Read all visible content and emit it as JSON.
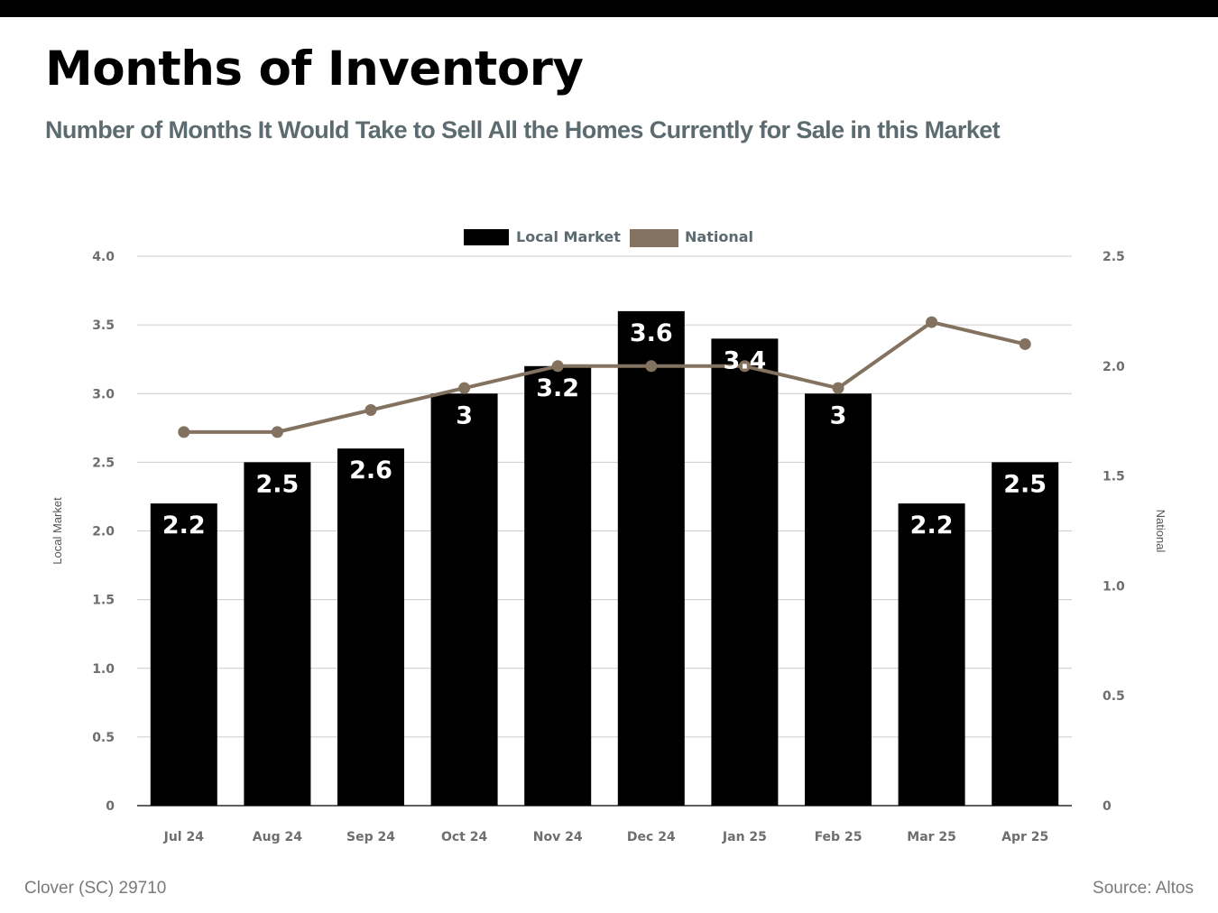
{
  "header": {
    "title": "Months of Inventory",
    "subtitle": "Number of Months It Would Take to Sell All the Homes Currently for Sale in this Market"
  },
  "footer": {
    "location": "Clover (SC) 29710",
    "source": "Source: Altos"
  },
  "chart_data": {
    "type": "bar",
    "categories": [
      "Jul 24",
      "Aug 24",
      "Sep 24",
      "Oct 24",
      "Nov 24",
      "Dec 24",
      "Jan 25",
      "Feb 25",
      "Mar 25",
      "Apr 25"
    ],
    "series": [
      {
        "name": "Local Market",
        "type": "bar",
        "axis": "left",
        "color": "#000000",
        "values": [
          2.2,
          2.5,
          2.6,
          3,
          3.2,
          3.6,
          3.4,
          3,
          2.2,
          2.5
        ],
        "data_labels": [
          "2.2",
          "2.5",
          "2.6",
          "3",
          "3.2",
          "3.6",
          "3.4",
          "3",
          "2.2",
          "2.5"
        ]
      },
      {
        "name": "National",
        "type": "line",
        "axis": "right",
        "color": "#83725f",
        "values": [
          1.7,
          1.7,
          1.8,
          1.9,
          2.0,
          2.0,
          2.0,
          1.9,
          2.2,
          2.1
        ]
      }
    ],
    "y_left": {
      "label": "Local Market",
      "range": [
        0,
        4.0
      ],
      "ticks": [
        0,
        0.5,
        1.0,
        1.5,
        2.0,
        2.5,
        3.0,
        3.5,
        4.0
      ],
      "tick_labels": [
        "0",
        "0.5",
        "1.0",
        "1.5",
        "2.0",
        "2.5",
        "3.0",
        "3.5",
        "4.0"
      ]
    },
    "y_right": {
      "label": "National",
      "range": [
        0,
        2.5
      ],
      "ticks": [
        0,
        0.5,
        1.0,
        1.5,
        2.0,
        2.5
      ],
      "tick_labels": [
        "0",
        "0.5",
        "1.0",
        "1.5",
        "2.0",
        "2.5"
      ]
    },
    "grid": true,
    "legend": "top-center"
  }
}
